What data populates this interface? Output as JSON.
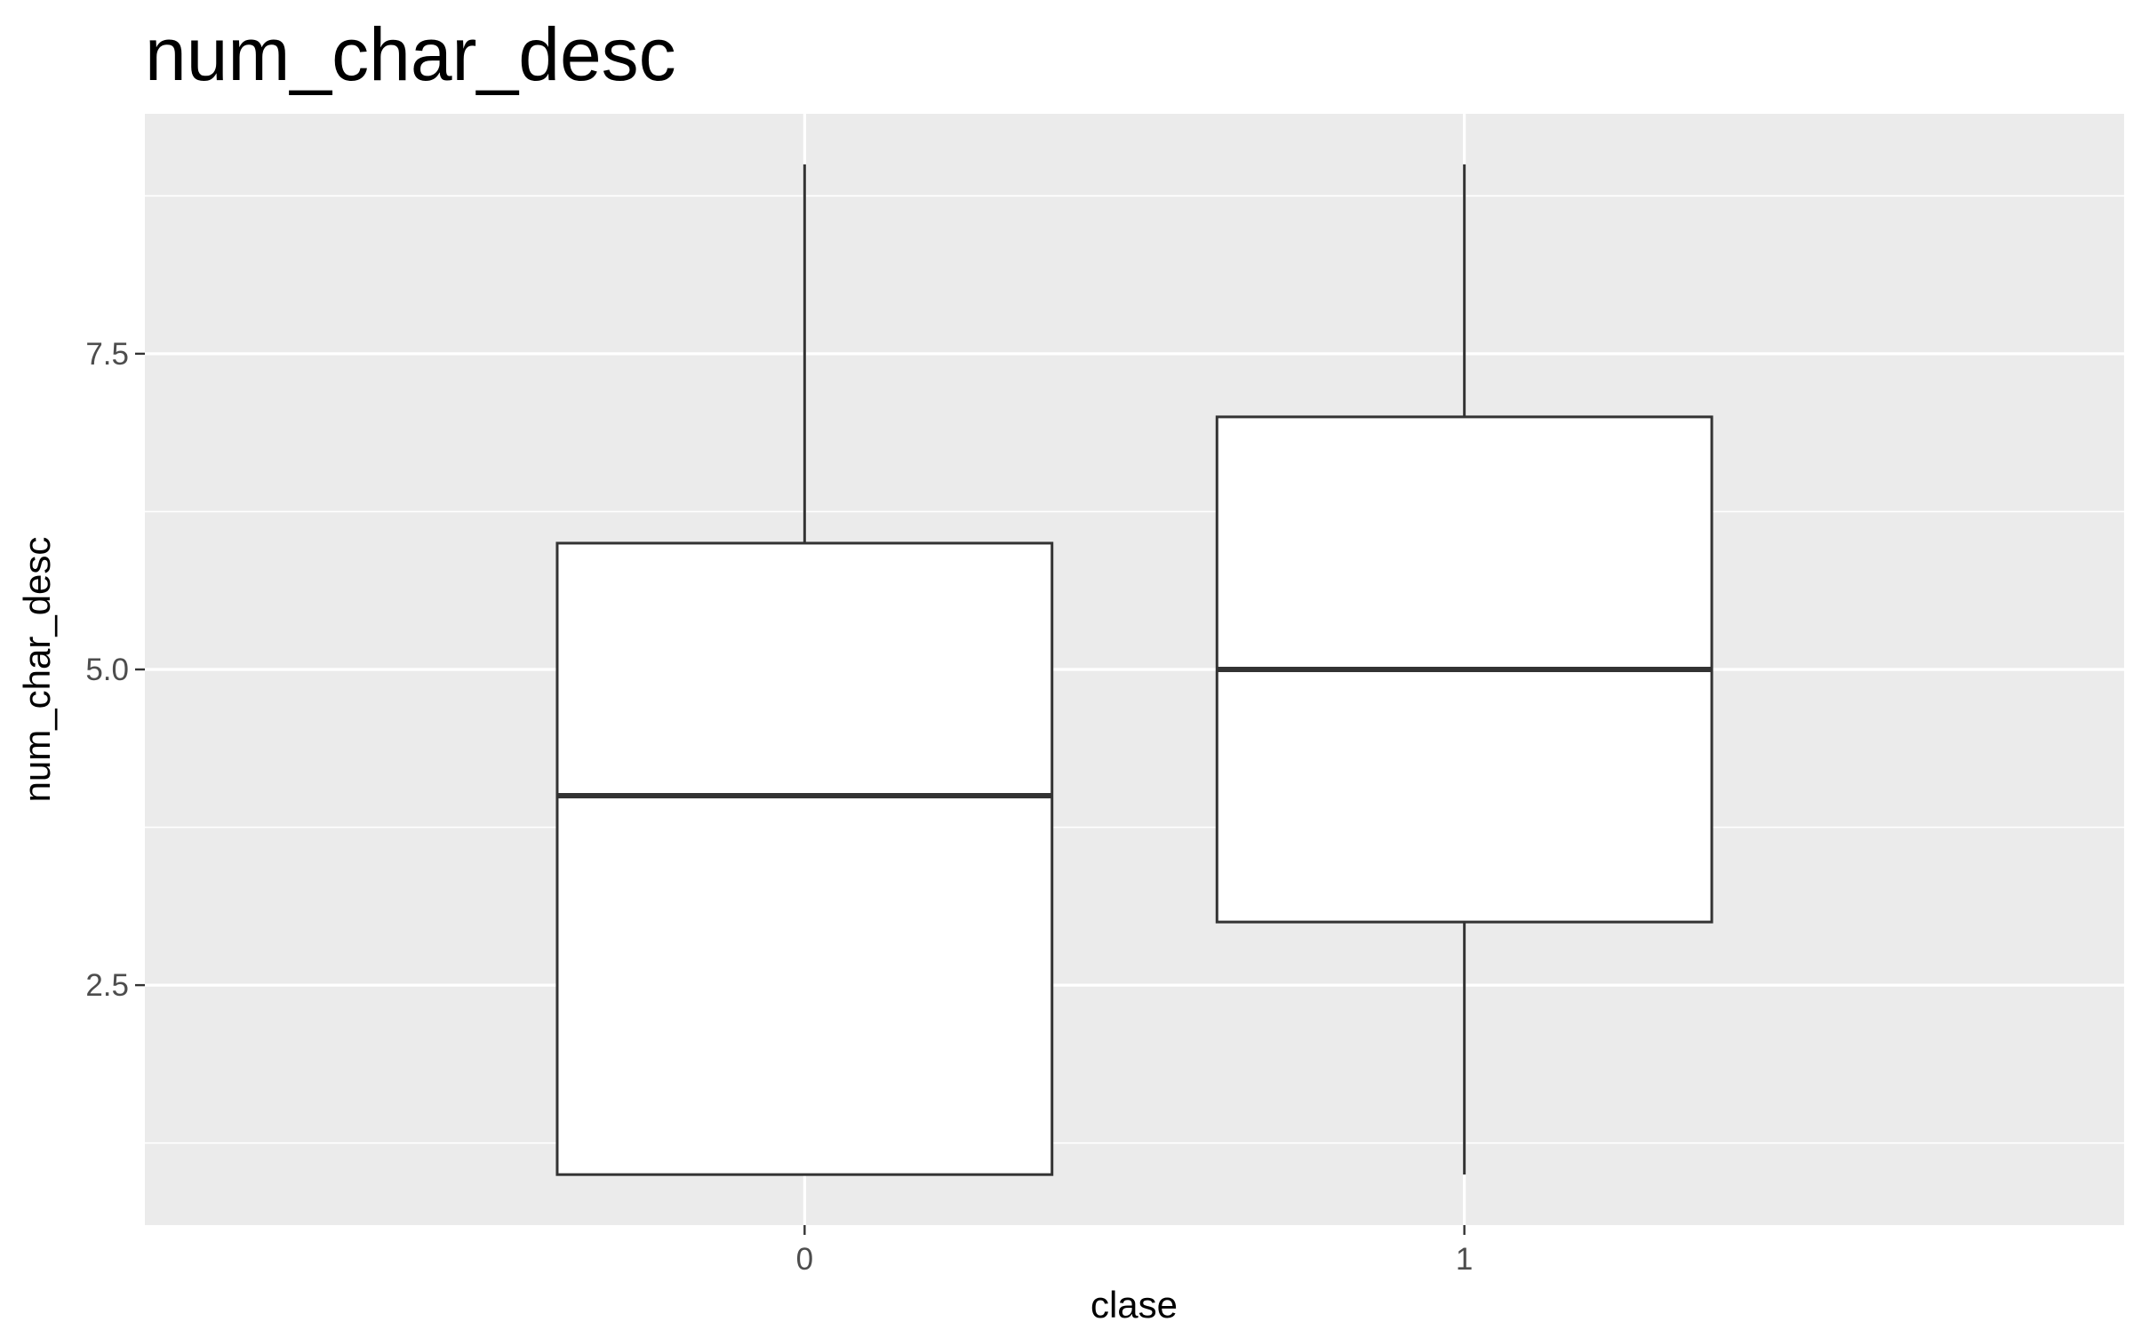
{
  "chart_data": {
    "type": "boxplot",
    "title": "num_char_desc",
    "xlabel": "clase",
    "ylabel": "num_char_desc",
    "categories": [
      "0",
      "1"
    ],
    "boxes": [
      {
        "category": "0",
        "min": 1,
        "q1": 1,
        "median": 4,
        "q3": 6,
        "max": 9
      },
      {
        "category": "1",
        "min": 1,
        "q1": 3,
        "median": 5,
        "q3": 7,
        "max": 9
      }
    ],
    "ylim": [
      0.6,
      9.4
    ],
    "y_ticks": [
      2.5,
      5.0,
      7.5
    ],
    "y_tick_labels": [
      "2.5",
      "5.0",
      "7.5"
    ],
    "y_minor_ticks": [
      1.25,
      3.75,
      6.25,
      8.75
    ],
    "grid": true,
    "legend": "none",
    "colors": {
      "panel_background": "#ebebeb",
      "grid_line": "#ffffff",
      "box_fill": "#ffffff",
      "box_stroke": "#333333",
      "tick_label": "#4d4d4d",
      "tick_mark": "#333333",
      "text": "#000000"
    }
  }
}
